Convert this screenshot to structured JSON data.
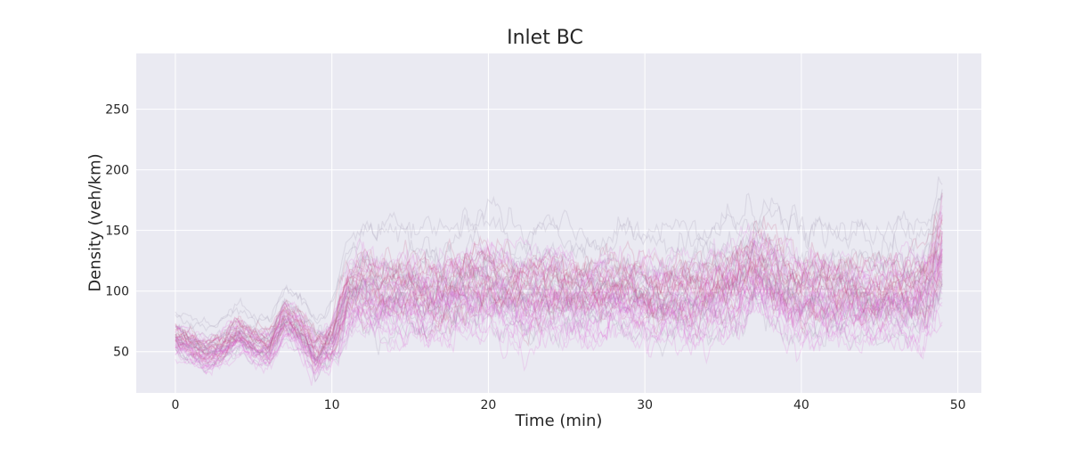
{
  "chart_data": {
    "type": "line",
    "title": "Inlet BC",
    "xlabel": "Time (min)",
    "ylabel": "Density (veh/km)",
    "xlim": [
      -2.5,
      51.5
    ],
    "ylim": [
      16,
      296
    ],
    "xticks": [
      0,
      10,
      20,
      30,
      40,
      50
    ],
    "yticks": [
      50,
      100,
      150,
      200,
      250
    ],
    "grid": true,
    "background": "#eaeaf2",
    "grid_color": "#ffffff",
    "series_colors": [
      "#e056d6",
      "#c0396a",
      "#8a7a9a",
      "#d96fd9"
    ],
    "ensemble_size": 60,
    "x_range": [
      0,
      49
    ],
    "mean_profile": {
      "x": [
        0,
        1,
        2,
        3,
        4,
        5,
        6,
        7,
        8,
        9,
        10,
        11,
        12,
        13,
        14,
        15,
        16,
        17,
        18,
        19,
        20,
        21,
        22,
        23,
        24,
        25,
        26,
        27,
        28,
        29,
        30,
        31,
        32,
        33,
        34,
        35,
        36,
        37,
        38,
        39,
        40,
        41,
        42,
        43,
        44,
        45,
        46,
        47,
        48,
        49
      ],
      "y": [
        63,
        57,
        50,
        55,
        66,
        58,
        55,
        80,
        70,
        52,
        62,
        100,
        108,
        100,
        100,
        103,
        98,
        100,
        105,
        108,
        112,
        105,
        100,
        102,
        104,
        100,
        98,
        100,
        104,
        102,
        100,
        98,
        100,
        98,
        102,
        106,
        112,
        122,
        116,
        105,
        100,
        102,
        100,
        102,
        100,
        98,
        102,
        100,
        105,
        140
      ]
    },
    "spread_profile": {
      "x": [
        0,
        5,
        10,
        11,
        20,
        30,
        37,
        45,
        48,
        49
      ],
      "y": [
        10,
        10,
        14,
        22,
        24,
        22,
        26,
        22,
        26,
        32
      ]
    }
  }
}
